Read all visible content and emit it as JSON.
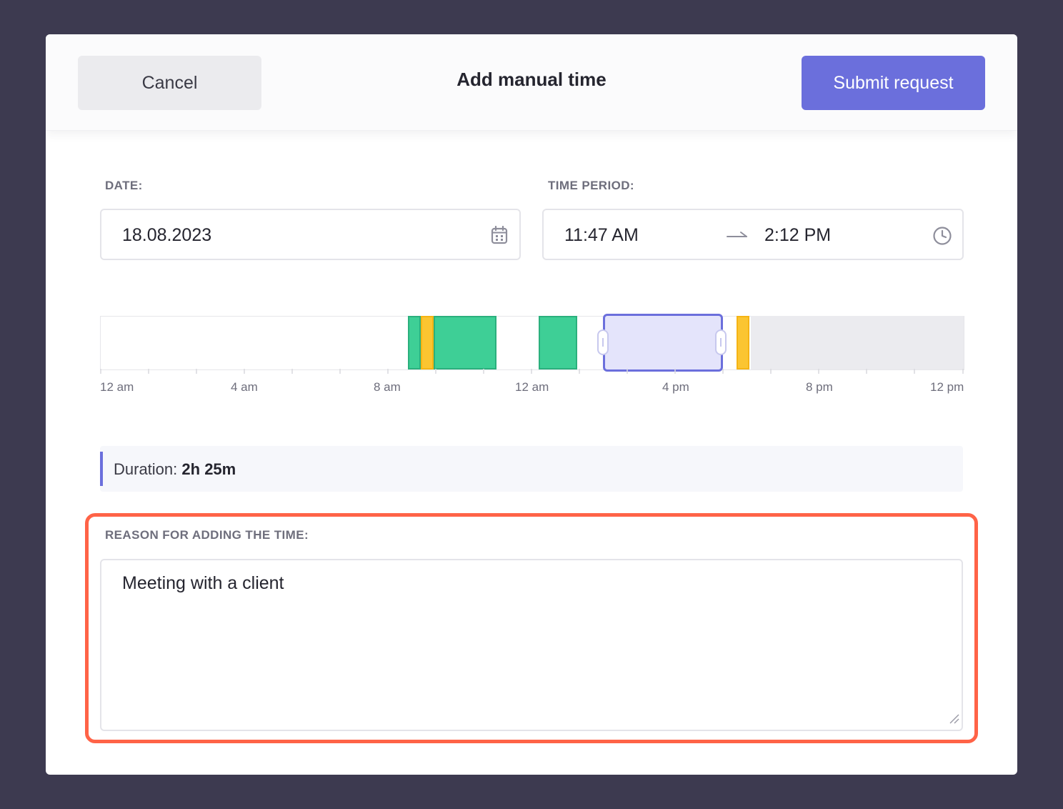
{
  "header": {
    "cancel_label": "Cancel",
    "title": "Add manual time",
    "submit_label": "Submit request"
  },
  "date": {
    "label": "DATE:",
    "value": "18.08.2023",
    "icon": "calendar-icon"
  },
  "time_period": {
    "label": "TIME PERIOD:",
    "start": "11:47 AM",
    "end": "2:12 PM",
    "separator_icon": "arrow-right-icon",
    "icon": "clock-icon"
  },
  "timeline": {
    "tick_labels": [
      "12 am",
      "4 am",
      "8 am",
      "12 am",
      "4 pm",
      "8 pm",
      "12 pm"
    ],
    "colors": {
      "tracked": "#3ecf96",
      "idle": "#fbc531",
      "selection": "#e4e4fb",
      "selection_border": "#6b6fdc",
      "future": "#ebebef"
    }
  },
  "duration": {
    "label": "Duration:",
    "value": "2h 25m"
  },
  "reason": {
    "label": "REASON FOR ADDING THE TIME:",
    "value": "Meeting with a client"
  },
  "colors": {
    "accent": "#6b6fdc",
    "highlight": "#ff6347",
    "backdrop": "#3d3a50"
  }
}
